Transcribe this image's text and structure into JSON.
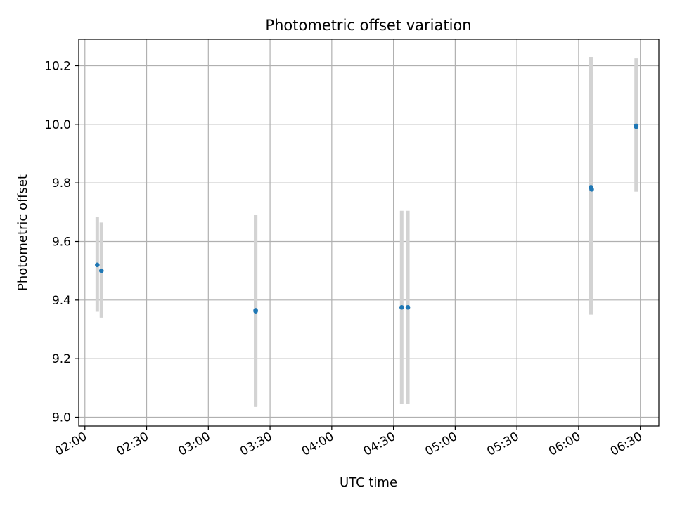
{
  "chart_data": {
    "type": "scatter",
    "title": "Photometric offset variation",
    "xlabel": "UTC time",
    "ylabel": "Photometric offset",
    "x_tick_labels": [
      "02:00",
      "02:30",
      "03:00",
      "03:30",
      "04:00",
      "04:30",
      "05:00",
      "05:30",
      "06:00",
      "06:30"
    ],
    "x_tick_values": [
      "02:00",
      "02:30",
      "03:00",
      "03:30",
      "04:00",
      "04:30",
      "05:00",
      "05:30",
      "06:00",
      "06:30"
    ],
    "xlim": [
      "01:57",
      "06:39"
    ],
    "y_tick_labels": [
      "9.0",
      "9.2",
      "9.4",
      "9.6",
      "9.8",
      "10.0",
      "10.2"
    ],
    "y_tick_values": [
      9.0,
      9.2,
      9.4,
      9.6,
      9.8,
      10.0,
      10.2
    ],
    "ylim": [
      8.97,
      10.29
    ],
    "grid": true,
    "series": [
      {
        "marker_color": "#1f77b4",
        "errorbar_color": "#d3d3d3",
        "points": [
          {
            "x": "02:06",
            "y": 9.52,
            "ylow": 9.36,
            "yhigh": 9.685
          },
          {
            "x": "02:07",
            "y": 9.5,
            "ylow": 9.34,
            "yhigh": 9.665
          },
          {
            "x": "03:23",
            "y": 9.365,
            "ylow": 9.04,
            "yhigh": 9.69
          },
          {
            "x": "03:23",
            "y": 9.362,
            "ylow": 9.035,
            "yhigh": 9.69
          },
          {
            "x": "04:34",
            "y": 9.375,
            "ylow": 9.045,
            "yhigh": 9.705
          },
          {
            "x": "04:37",
            "y": 9.375,
            "ylow": 9.045,
            "yhigh": 9.705
          },
          {
            "x": "06:06",
            "y": 9.785,
            "ylow": 9.35,
            "yhigh": 10.23
          },
          {
            "x": "06:06",
            "y": 9.778,
            "ylow": 9.37,
            "yhigh": 10.18
          },
          {
            "x": "06:28",
            "y": 9.995,
            "ylow": 9.77,
            "yhigh": 10.225
          },
          {
            "x": "06:28",
            "y": 9.992,
            "ylow": 9.77,
            "yhigh": 10.2
          }
        ]
      }
    ]
  }
}
